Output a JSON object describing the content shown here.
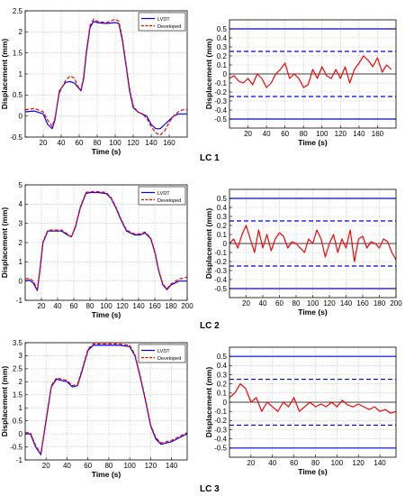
{
  "layout_labels": {
    "case_1": "LC 1",
    "case_2": "LC 2",
    "case_3": "LC 3"
  },
  "colors": {
    "lvdt": "#0000ff",
    "developed": "#ff0000",
    "error": "#ff0000",
    "band": "#0000ff"
  },
  "chart_data": [
    {
      "type": "line",
      "case": "LC 1",
      "xlabel": "Time (s)",
      "ylabel": "Displacement (mm)",
      "xlim": [
        0,
        180
      ],
      "ylim": [
        -0.5,
        2.5
      ],
      "xticks": [
        20,
        40,
        60,
        80,
        100,
        120,
        140,
        160
      ],
      "yticks": [
        -0.5,
        0,
        0.5,
        1,
        1.5,
        2,
        2.5
      ],
      "grid": true,
      "legend_position": "top-right",
      "series": [
        {
          "name": "LVDT",
          "style": "solid",
          "x": [
            0,
            10,
            20,
            25,
            30,
            33,
            38,
            45,
            50,
            55,
            58,
            62,
            65,
            68,
            72,
            76,
            80,
            90,
            100,
            104,
            108,
            112,
            116,
            120,
            125,
            130,
            135,
            140,
            145,
            150,
            155,
            160,
            165,
            170,
            175,
            180
          ],
          "y": [
            0.1,
            0.12,
            0.05,
            -0.2,
            -0.3,
            -0.1,
            0.6,
            0.8,
            0.82,
            0.78,
            0.7,
            0.6,
            0.9,
            1.5,
            2.1,
            2.25,
            2.22,
            2.2,
            2.22,
            2.2,
            1.8,
            1.2,
            0.6,
            0.2,
            0.1,
            0.05,
            0.0,
            -0.2,
            -0.3,
            -0.3,
            -0.2,
            -0.1,
            0.0,
            0.05,
            0.05,
            0.05
          ]
        },
        {
          "name": "Developed",
          "style": "dashed",
          "x": [
            0,
            10,
            20,
            25,
            30,
            33,
            38,
            45,
            50,
            55,
            58,
            62,
            65,
            68,
            72,
            76,
            80,
            90,
            100,
            104,
            108,
            112,
            116,
            120,
            125,
            130,
            135,
            140,
            145,
            150,
            155,
            160,
            165,
            170,
            175,
            180
          ],
          "y": [
            0.15,
            0.18,
            0.1,
            -0.1,
            -0.25,
            -0.05,
            0.55,
            0.85,
            0.95,
            0.9,
            0.72,
            0.62,
            0.95,
            1.55,
            2.15,
            2.3,
            2.25,
            2.22,
            2.3,
            2.25,
            1.85,
            1.25,
            0.65,
            0.25,
            0.1,
            0.05,
            -0.05,
            -0.25,
            -0.4,
            -0.45,
            -0.35,
            -0.15,
            0.0,
            0.1,
            0.15,
            0.15
          ]
        }
      ]
    },
    {
      "type": "line",
      "case": "LC 1",
      "xlabel": "Time (s)",
      "ylabel": "Displacement (mm)",
      "xlim": [
        0,
        180
      ],
      "ylim": [
        -0.6,
        0.6
      ],
      "xticks": [
        20,
        40,
        60,
        80,
        100,
        120,
        140,
        160
      ],
      "yticks": [
        -0.5,
        -0.4,
        -0.3,
        -0.2,
        -0.1,
        0,
        0.1,
        0.2,
        0.3,
        0.4,
        0.5
      ],
      "grid": true,
      "reference_lines": {
        "solid": [
          -0.5,
          0.5
        ],
        "dashed": [
          -0.25,
          0.25
        ]
      },
      "series": [
        {
          "name": "",
          "style": "solid",
          "x": [
            0,
            5,
            10,
            15,
            20,
            25,
            30,
            35,
            40,
            45,
            50,
            55,
            60,
            65,
            70,
            75,
            80,
            85,
            90,
            95,
            100,
            105,
            110,
            115,
            120,
            125,
            130,
            135,
            140,
            145,
            150,
            155,
            160,
            165,
            170,
            175
          ],
          "y": [
            -0.05,
            -0.02,
            -0.08,
            -0.1,
            -0.05,
            -0.12,
            0.0,
            -0.05,
            -0.15,
            -0.1,
            0.0,
            0.05,
            0.12,
            -0.05,
            0.0,
            -0.05,
            -0.15,
            -0.12,
            0.05,
            -0.05,
            0.08,
            -0.02,
            -0.05,
            0.05,
            -0.05,
            0.08,
            -0.1,
            0.05,
            0.12,
            0.2,
            0.15,
            0.08,
            0.18,
            0.02,
            0.1,
            0.05
          ]
        }
      ]
    },
    {
      "type": "line",
      "case": "LC 2",
      "xlabel": "Time (s)",
      "ylabel": "Displacement (mm)",
      "xlim": [
        0,
        200
      ],
      "ylim": [
        -1,
        5
      ],
      "xticks": [
        20,
        40,
        60,
        80,
        100,
        120,
        140,
        160,
        180,
        200
      ],
      "yticks": [
        -1,
        0,
        1,
        2,
        3,
        4,
        5
      ],
      "grid": true,
      "legend_position": "top-right",
      "series": [
        {
          "name": "LVDT",
          "style": "solid",
          "x": [
            0,
            5,
            10,
            15,
            18,
            22,
            28,
            35,
            45,
            52,
            57,
            62,
            68,
            75,
            80,
            90,
            100,
            106,
            112,
            118,
            125,
            135,
            142,
            148,
            155,
            160,
            165,
            170,
            175,
            180,
            190,
            200
          ],
          "y": [
            0.0,
            0.05,
            -0.1,
            -0.5,
            0.5,
            2.0,
            2.6,
            2.6,
            2.6,
            2.4,
            2.3,
            2.8,
            3.8,
            4.55,
            4.6,
            4.6,
            4.55,
            4.3,
            3.8,
            3.2,
            2.6,
            2.4,
            2.4,
            2.5,
            2.2,
            1.5,
            0.5,
            -0.2,
            -0.45,
            -0.2,
            0.0,
            0.0
          ]
        },
        {
          "name": "Developed",
          "style": "dashed",
          "x": [
            0,
            5,
            10,
            15,
            18,
            22,
            28,
            35,
            45,
            52,
            57,
            62,
            68,
            75,
            80,
            90,
            100,
            106,
            112,
            118,
            125,
            135,
            142,
            148,
            155,
            160,
            165,
            170,
            175,
            180,
            190,
            200
          ],
          "y": [
            0.1,
            0.15,
            0.0,
            -0.45,
            0.55,
            2.05,
            2.65,
            2.65,
            2.65,
            2.45,
            2.3,
            2.85,
            3.85,
            4.6,
            4.65,
            4.65,
            4.6,
            4.35,
            3.85,
            3.25,
            2.65,
            2.45,
            2.45,
            2.55,
            2.25,
            1.55,
            0.55,
            -0.15,
            -0.4,
            -0.15,
            0.1,
            0.2
          ]
        }
      ]
    },
    {
      "type": "line",
      "case": "LC 2",
      "xlabel": "Time (s)",
      "ylabel": "Displacement (mm)",
      "xlim": [
        0,
        200
      ],
      "ylim": [
        -0.6,
        0.6
      ],
      "xticks": [
        20,
        40,
        60,
        80,
        100,
        120,
        140,
        160,
        180,
        200
      ],
      "yticks": [
        -0.5,
        -0.4,
        -0.3,
        -0.2,
        -0.1,
        0,
        0.1,
        0.2,
        0.3,
        0.4,
        0.5
      ],
      "grid": true,
      "reference_lines": {
        "solid": [
          -0.5,
          0.5
        ],
        "dashed": [
          -0.25,
          0.25
        ]
      },
      "series": [
        {
          "name": "",
          "style": "solid",
          "x": [
            0,
            5,
            10,
            15,
            20,
            25,
            30,
            35,
            40,
            45,
            50,
            55,
            60,
            65,
            70,
            75,
            80,
            85,
            90,
            95,
            100,
            105,
            110,
            115,
            120,
            125,
            130,
            135,
            140,
            145,
            150,
            155,
            160,
            165,
            170,
            175,
            180,
            185,
            190,
            195,
            200
          ],
          "y": [
            0.0,
            0.05,
            -0.05,
            0.1,
            0.2,
            0.05,
            -0.1,
            0.15,
            -0.05,
            0.1,
            -0.08,
            0.05,
            0.12,
            0.08,
            -0.05,
            0.02,
            0.0,
            -0.05,
            -0.1,
            0.05,
            0.0,
            0.15,
            0.05,
            -0.15,
            0.0,
            0.1,
            -0.1,
            0.05,
            -0.05,
            0.15,
            -0.2,
            0.05,
            0.08,
            -0.05,
            0.02,
            0.0,
            -0.05,
            0.05,
            0.02,
            -0.1,
            -0.18
          ]
        }
      ]
    },
    {
      "type": "line",
      "case": "LC 3",
      "xlabel": "Time (s)",
      "ylabel": "Displacement (mm)",
      "xlim": [
        0,
        155
      ],
      "ylim": [
        -1,
        3.5
      ],
      "xticks": [
        20,
        40,
        60,
        80,
        100,
        120,
        140
      ],
      "yticks": [
        -1,
        -0.5,
        0,
        0.5,
        1,
        1.5,
        2,
        2.5,
        3,
        3.5
      ],
      "grid": true,
      "legend_position": "top-right",
      "series": [
        {
          "name": "LVDT",
          "style": "solid",
          "x": [
            0,
            5,
            10,
            15,
            20,
            25,
            30,
            35,
            40,
            45,
            50,
            55,
            60,
            65,
            70,
            80,
            90,
            100,
            105,
            110,
            115,
            120,
            125,
            130,
            135,
            140,
            145,
            150,
            155
          ],
          "y": [
            0.0,
            0.0,
            -0.5,
            -0.8,
            0.5,
            1.8,
            2.1,
            2.05,
            2.0,
            1.8,
            1.85,
            2.5,
            3.2,
            3.4,
            3.4,
            3.4,
            3.4,
            3.35,
            3.0,
            2.2,
            1.3,
            0.3,
            -0.2,
            -0.4,
            -0.35,
            -0.3,
            -0.2,
            -0.1,
            0.0
          ]
        },
        {
          "name": "Developed",
          "style": "dashed",
          "x": [
            0,
            5,
            10,
            15,
            20,
            25,
            30,
            35,
            40,
            45,
            50,
            55,
            60,
            65,
            70,
            80,
            90,
            100,
            105,
            110,
            115,
            120,
            125,
            130,
            135,
            140,
            145,
            150,
            155
          ],
          "y": [
            0.05,
            0.05,
            -0.45,
            -0.75,
            0.55,
            1.85,
            2.15,
            2.1,
            2.05,
            1.85,
            1.9,
            2.55,
            3.25,
            3.45,
            3.45,
            3.45,
            3.45,
            3.4,
            3.05,
            2.25,
            1.35,
            0.35,
            -0.15,
            -0.35,
            -0.3,
            -0.25,
            -0.15,
            -0.05,
            0.05
          ]
        }
      ]
    },
    {
      "type": "line",
      "case": "LC 3",
      "xlabel": "Time (s)",
      "ylabel": "Displacement (mm)",
      "xlim": [
        0,
        155
      ],
      "ylim": [
        -0.6,
        0.6
      ],
      "xticks": [
        20,
        40,
        60,
        80,
        100,
        120,
        140
      ],
      "yticks": [
        -0.5,
        -0.4,
        -0.3,
        -0.2,
        -0.1,
        0,
        0.1,
        0.2,
        0.3,
        0.4,
        0.5
      ],
      "grid": true,
      "reference_lines": {
        "solid": [
          -0.5,
          0.5
        ],
        "dashed": [
          -0.25,
          0.25
        ]
      },
      "series": [
        {
          "name": "",
          "style": "solid",
          "x": [
            0,
            5,
            10,
            15,
            20,
            25,
            30,
            35,
            40,
            45,
            50,
            55,
            60,
            65,
            70,
            75,
            80,
            85,
            90,
            95,
            100,
            105,
            110,
            115,
            120,
            125,
            130,
            135,
            140,
            145,
            150,
            155
          ],
          "y": [
            0.05,
            0.1,
            0.2,
            0.15,
            0.0,
            0.05,
            -0.1,
            0.0,
            -0.05,
            -0.1,
            0.0,
            -0.05,
            0.05,
            -0.1,
            -0.05,
            0.0,
            -0.05,
            -0.02,
            -0.05,
            0.0,
            -0.05,
            0.02,
            -0.03,
            -0.05,
            -0.02,
            -0.05,
            -0.08,
            -0.05,
            -0.1,
            -0.08,
            -0.12,
            -0.1
          ]
        }
      ]
    }
  ]
}
